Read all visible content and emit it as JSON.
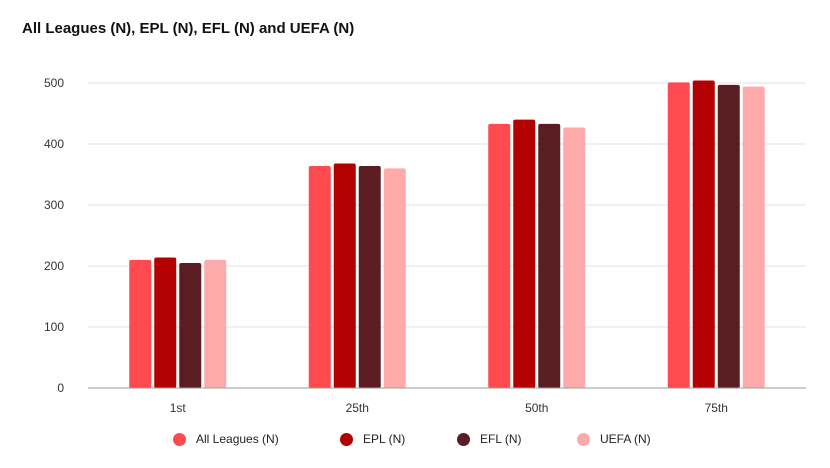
{
  "chart_data": {
    "type": "bar",
    "title": "All Leagues (N), EPL (N), EFL (N) and UEFA (N)",
    "xlabel": "",
    "ylabel": "",
    "categories": [
      "1st",
      "25th",
      "50th",
      "75th"
    ],
    "ylim": [
      0,
      500
    ],
    "yticks": [
      0,
      100,
      200,
      300,
      400,
      500
    ],
    "grid": true,
    "legend_position": "bottom",
    "series": [
      {
        "name": "All Leagues (N)",
        "color": "#ff4a4f",
        "values": [
          210,
          364,
          433,
          501
        ]
      },
      {
        "name": "EPL (N)",
        "color": "#b30000",
        "values": [
          214,
          368,
          440,
          504
        ]
      },
      {
        "name": "EFL (N)",
        "color": "#5a1e22",
        "values": [
          205,
          364,
          433,
          497
        ]
      },
      {
        "name": "UEFA (N)",
        "color": "#ffaaaa",
        "values": [
          210,
          360,
          427,
          494
        ]
      }
    ]
  }
}
